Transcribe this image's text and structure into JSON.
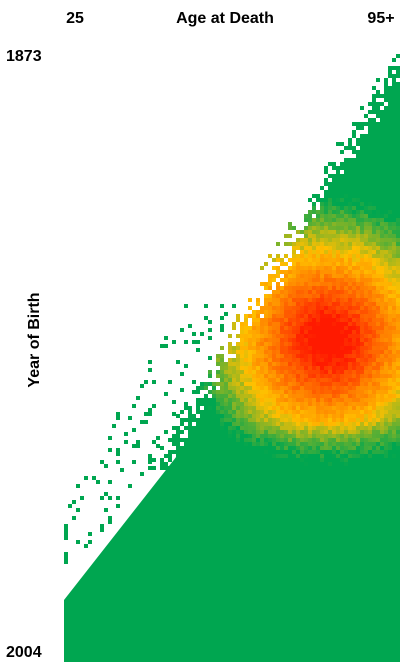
{
  "chart_data": {
    "type": "heatmap",
    "title": "",
    "xlabel": "Age at Death",
    "ylabel": "Year of Birth",
    "x_tick_labels": [
      "25",
      "95+"
    ],
    "y_tick_labels": [
      "1873",
      "2004"
    ],
    "x_range": [
      25,
      95
    ],
    "y_range": [
      1873,
      2004
    ],
    "color_scale": {
      "low": "#00a650",
      "mid": "#ffc000",
      "high": "#ff1a00"
    },
    "peak": {
      "age_at_death": 80,
      "year_of_birth": 1935
    },
    "legend": "none",
    "grid": false
  }
}
